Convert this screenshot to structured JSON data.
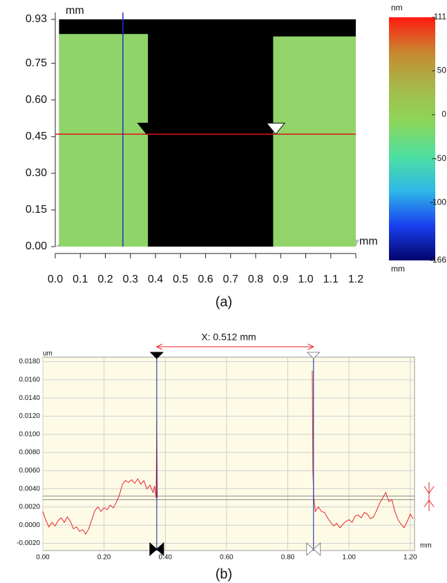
{
  "chart_data": [
    {
      "type": "heatmap",
      "y_label": "mm",
      "x_label": "mm",
      "caption": "(a)",
      "xlim": [
        0,
        1.2
      ],
      "ylim": [
        0,
        0.93
      ],
      "xticks": [
        {
          "value": 0,
          "label": "0.0"
        },
        0.1,
        0.2,
        0.3,
        0.4,
        0.5,
        0.6,
        0.7,
        0.8,
        0.9,
        {
          "value": 1,
          "label": "1.0"
        },
        1.1,
        1.2
      ],
      "yticks": [
        {
          "value": 0,
          "label": "0.00"
        },
        0.15,
        {
          "value": 0.3,
          "label": "0.30"
        },
        0.45,
        {
          "value": 0.6,
          "label": "0.60"
        },
        0.75,
        0.93
      ],
      "background": "#000000",
      "surface": [
        {
          "from": 0.015,
          "to": 0.37,
          "top": 0.87,
          "color": "#8fd469"
        },
        {
          "from": 0.87,
          "to": 1.2,
          "top": 0.86,
          "color": "#92d46a"
        }
      ],
      "cursor_x": 0.27,
      "cursor_y": 0.46,
      "markers": [
        0.365,
        0.88
      ],
      "colorbar": {
        "label": "nm",
        "axis_label": "mm",
        "lim": [
          -166,
          111
        ],
        "ticks": [
          111,
          50,
          0,
          -50,
          -100,
          -166
        ],
        "colors": [
          "#03046a",
          "#1a3ff0",
          "#2fb8e8",
          "#4ee0a0",
          "#8cd65a",
          "#a6b94a",
          "#c9862f",
          "#ff1a10"
        ]
      }
    },
    {
      "type": "line",
      "y_label": "um",
      "x_label": "mm",
      "annotation": "X: 0.512 mm",
      "caption": "(b)",
      "xlim": [
        0,
        1.214
      ],
      "ylim": [
        -0.0028,
        0.0185
      ],
      "grid": true,
      "background": "#fdfbe6",
      "xticks": [
        {
          "value": 0,
          "label": "0.00"
        },
        {
          "value": 0.2,
          "label": "0.20"
        },
        {
          "value": 0.4,
          "label": "0.40"
        },
        {
          "value": 0.6,
          "label": "0.60"
        },
        {
          "value": 0.8,
          "label": "0.80"
        },
        {
          "value": 1,
          "label": "1.00"
        },
        {
          "value": 1.2,
          "label": "1.20"
        }
      ],
      "yticks": [
        {
          "value": -0.002,
          "label": "-0.0020"
        },
        {
          "value": 0,
          "label": "0.0000"
        },
        {
          "value": 0.002,
          "label": "0.0020"
        },
        {
          "value": 0.004,
          "label": "0.0040"
        },
        {
          "value": 0.006,
          "label": "0.0060"
        },
        {
          "value": 0.008,
          "label": "0.0080"
        },
        {
          "value": 0.01,
          "label": "0.0100"
        },
        {
          "value": 0.012,
          "label": "0.0120"
        },
        {
          "value": 0.014,
          "label": "0.0140"
        },
        {
          "value": 0.016,
          "label": "0.0160"
        },
        {
          "value": 0.018,
          "label": "0.0180"
        }
      ],
      "cursors": [
        0.372,
        0.884
      ],
      "reference_lines": [
        0.0028,
        0.0032
      ],
      "x": [
        0,
        0.01,
        0.02,
        0.03,
        0.04,
        0.05,
        0.06,
        0.07,
        0.08,
        0.09,
        0.1,
        0.11,
        0.12,
        0.13,
        0.14,
        0.15,
        0.16,
        0.17,
        0.18,
        0.19,
        0.2,
        0.21,
        0.22,
        0.23,
        0.24,
        0.25,
        0.26,
        0.27,
        0.28,
        0.29,
        0.3,
        0.31,
        0.32,
        0.33,
        0.34,
        0.35,
        0.36,
        0.365,
        0.37,
        0.372,
        0.374,
        0.6,
        0.88,
        0.882,
        0.885,
        0.89,
        0.9,
        0.91,
        0.92,
        0.93,
        0.94,
        0.95,
        0.96,
        0.97,
        0.98,
        0.99,
        1,
        1.01,
        1.02,
        1.03,
        1.04,
        1.05,
        1.06,
        1.07,
        1.08,
        1.09,
        1.1,
        1.11,
        1.12,
        1.13,
        1.14,
        1.15,
        1.16,
        1.17,
        1.18,
        1.19,
        1.2,
        1.21
      ],
      "series": [
        {
          "color": "#e8202a",
          "values": [
            0.0015,
            0.0005,
            -0.0002,
            0.0003,
            -0.0001,
            0.0005,
            0.0008,
            0.0003,
            0.0009,
            0.0004,
            -0.0004,
            -0.0002,
            -0.0007,
            -0.0005,
            -0.001,
            -0.0004,
            0.0006,
            0.0016,
            0.002,
            0.0015,
            0.0019,
            0.0017,
            0.0022,
            0.0019,
            0.0025,
            0.0033,
            0.0045,
            0.0049,
            0.0047,
            0.005,
            0.0046,
            0.0051,
            0.0045,
            0.0049,
            0.004,
            0.0044,
            0.0036,
            0.0043,
            0.003,
            0.0115,
            0.003,
            null,
            0.017,
            0.006,
            0.003,
            0.0015,
            0.002,
            0.0015,
            0.0014,
            0.0008,
            0.0003,
            -0.0001,
            0.0002,
            -0.0003,
            0.0001,
            0.0004,
            0.0006,
            0.0003,
            0.001,
            0.0011,
            0.0008,
            0.0014,
            0.0012,
            0.0007,
            0.0009,
            0.0016,
            0.0024,
            0.003,
            0.0036,
            0.0026,
            0.0028,
            0.0015,
            0.0006,
            0.0001,
            -0.0003,
            0.0004,
            0.0012,
            0.0007
          ]
        }
      ]
    }
  ]
}
